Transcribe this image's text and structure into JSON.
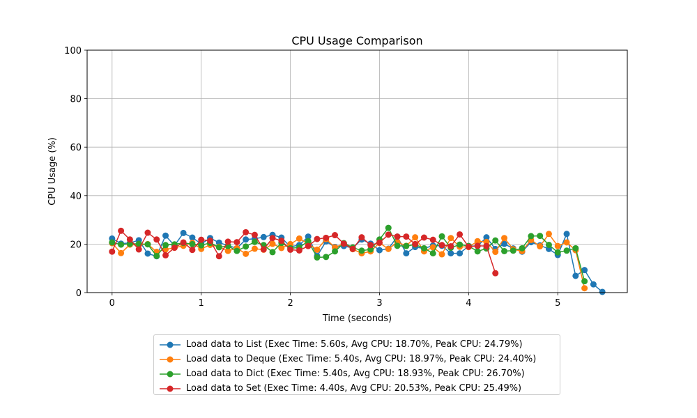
{
  "chart_data": {
    "type": "line",
    "title": "CPU Usage Comparison",
    "xlabel": "Time (seconds)",
    "ylabel": "CPU Usage (%)",
    "xlim": [
      -0.28,
      5.78
    ],
    "ylim": [
      0,
      100
    ],
    "x_ticks": [
      0,
      1,
      2,
      3,
      4,
      5
    ],
    "y_ticks": [
      0,
      20,
      40,
      60,
      80,
      100
    ],
    "grid": true,
    "legend_position": "below-center",
    "series": [
      {
        "name": "Load data to List (Exec Time: 5.60s, Avg CPU: 18.70%, Peak CPU: 24.79%)",
        "color": "#1f77b4",
        "x": [
          0,
          0.1,
          0.2,
          0.3,
          0.4,
          0.5,
          0.6,
          0.7,
          0.8,
          0.9,
          1.0,
          1.1,
          1.2,
          1.3,
          1.4,
          1.5,
          1.6,
          1.7,
          1.8,
          1.9,
          2.0,
          2.1,
          2.2,
          2.3,
          2.4,
          2.5,
          2.6,
          2.7,
          2.8,
          2.9,
          3.0,
          3.1,
          3.2,
          3.3,
          3.4,
          3.5,
          3.6,
          3.7,
          3.8,
          3.9,
          4.0,
          4.1,
          4.2,
          4.3,
          4.4,
          4.5,
          4.6,
          4.7,
          4.8,
          4.9,
          5.0,
          5.1,
          5.2,
          5.3,
          5.4,
          5.5
        ],
        "y": [
          22.3,
          20.2,
          20.5,
          21.6,
          16.1,
          15.0,
          23.5,
          19.4,
          24.6,
          22.7,
          20.1,
          22.5,
          20.6,
          19.4,
          18.3,
          21.9,
          22.2,
          22.9,
          23.8,
          22.7,
          18.9,
          19.6,
          23.1,
          15.1,
          21.1,
          18.8,
          19.2,
          18.4,
          21.9,
          20.2,
          17.5,
          18.1,
          23.1,
          16.2,
          18.8,
          18.2,
          19.4,
          19.3,
          16.2,
          16.2,
          19.2,
          19.2,
          22.8,
          18.0,
          20.1,
          18.2,
          16.9,
          20.8,
          19.5,
          18.0,
          15.5,
          24.2,
          6.9,
          9.3,
          3.4,
          0.3
        ]
      },
      {
        "name": "Load data to Deque (Exec Time: 5.40s, Avg CPU: 18.97%, Peak CPU: 24.40%)",
        "color": "#ff7f0e",
        "x": [
          0,
          0.1,
          0.2,
          0.3,
          0.4,
          0.5,
          0.6,
          0.7,
          0.8,
          0.9,
          1.0,
          1.1,
          1.2,
          1.3,
          1.4,
          1.5,
          1.6,
          1.7,
          1.8,
          1.9,
          2.0,
          2.1,
          2.2,
          2.3,
          2.4,
          2.5,
          2.6,
          2.7,
          2.8,
          2.9,
          3.0,
          3.1,
          3.2,
          3.3,
          3.4,
          3.5,
          3.6,
          3.7,
          3.8,
          3.9,
          4.0,
          4.1,
          4.2,
          4.3,
          4.4,
          4.5,
          4.6,
          4.7,
          4.8,
          4.9,
          5.0,
          5.1,
          5.2,
          5.3
        ],
        "y": [
          20.4,
          16.3,
          19.8,
          19.6,
          20.0,
          16.8,
          17.8,
          18.5,
          19.3,
          20.5,
          18.0,
          19.7,
          18.9,
          17.2,
          18.3,
          16.0,
          18.1,
          17.7,
          20.1,
          18.4,
          20.0,
          22.3,
          20.1,
          17.7,
          22.1,
          18.6,
          20.2,
          17.9,
          16.2,
          17.0,
          20.5,
          18.0,
          20.8,
          19.3,
          22.8,
          17.0,
          18.7,
          15.8,
          22.5,
          18.9,
          18.8,
          21.2,
          20.9,
          16.8,
          22.5,
          17.9,
          17.1,
          21.7,
          19.1,
          24.2,
          19.2,
          20.7,
          17.5,
          1.8
        ]
      },
      {
        "name": "Load data to Dict (Exec Time: 5.40s, Avg CPU: 18.93%, Peak CPU: 26.70%)",
        "color": "#2ca02c",
        "x": [
          0,
          0.1,
          0.2,
          0.3,
          0.4,
          0.5,
          0.6,
          0.7,
          0.8,
          0.9,
          1.0,
          1.1,
          1.2,
          1.3,
          1.4,
          1.5,
          1.6,
          1.7,
          1.8,
          1.9,
          2.0,
          2.1,
          2.2,
          2.3,
          2.4,
          2.5,
          2.6,
          2.7,
          2.8,
          2.9,
          3.0,
          3.1,
          3.2,
          3.3,
          3.4,
          3.5,
          3.6,
          3.7,
          3.8,
          3.9,
          4.0,
          4.1,
          4.2,
          4.3,
          4.4,
          4.5,
          4.6,
          4.7,
          4.8,
          4.9,
          5.0,
          5.1,
          5.2,
          5.3
        ],
        "y": [
          20.7,
          19.8,
          20.1,
          20.1,
          19.9,
          15.1,
          19.6,
          19.9,
          20.5,
          20.0,
          19.5,
          20.5,
          18.7,
          19.2,
          17.2,
          19.0,
          20.9,
          19.6,
          16.7,
          20.5,
          18.3,
          18.6,
          21.2,
          14.5,
          14.7,
          17.0,
          20.4,
          18.6,
          17.3,
          17.8,
          21.9,
          26.7,
          19.3,
          19.2,
          19.8,
          18.3,
          16.2,
          23.2,
          18.5,
          19.8,
          19.2,
          17.0,
          18.2,
          21.5,
          17.1,
          17.3,
          18.3,
          23.3,
          23.4,
          19.7,
          16.6,
          17.3,
          18.3,
          4.7
        ]
      },
      {
        "name": "Load data to Set (Exec Time: 4.40s, Avg CPU: 20.53%, Peak CPU: 25.49%)",
        "color": "#d62728",
        "x": [
          0,
          0.1,
          0.2,
          0.3,
          0.4,
          0.5,
          0.6,
          0.7,
          0.8,
          0.9,
          1.0,
          1.1,
          1.2,
          1.3,
          1.4,
          1.5,
          1.6,
          1.7,
          1.8,
          1.9,
          2.0,
          2.1,
          2.2,
          2.3,
          2.4,
          2.5,
          2.6,
          2.7,
          2.8,
          2.9,
          3.0,
          3.1,
          3.2,
          3.3,
          3.4,
          3.5,
          3.6,
          3.7,
          3.8,
          3.9,
          4.0,
          4.1,
          4.2,
          4.3
        ],
        "y": [
          16.9,
          25.5,
          21.9,
          17.8,
          24.7,
          21.9,
          15.4,
          18.5,
          20.7,
          17.6,
          21.8,
          21.4,
          15.0,
          21.0,
          20.8,
          24.9,
          23.8,
          17.8,
          22.5,
          21.4,
          17.7,
          17.4,
          19.2,
          22.1,
          22.6,
          23.7,
          20.2,
          18.0,
          22.8,
          19.6,
          20.6,
          23.9,
          23.1,
          23.1,
          20.0,
          22.7,
          21.8,
          19.6,
          19.1,
          24.0,
          18.9,
          19.3,
          19.2,
          8.0
        ]
      }
    ]
  }
}
